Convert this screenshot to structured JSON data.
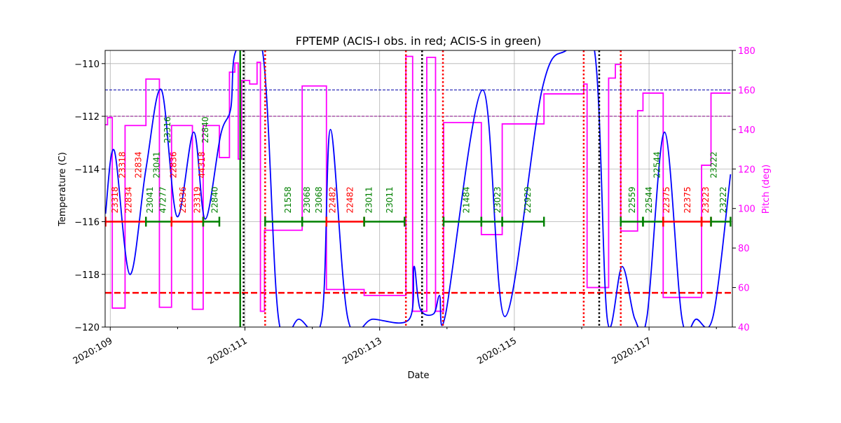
{
  "chart_data": {
    "type": "line",
    "title": "FPTEMP (ACIS-I obs. in red; ACIS-S in green)",
    "xlabel": "Date",
    "ylabel": "Temperature (C)",
    "y2label": "Pitch (deg)",
    "xlim": [
      108.93,
      118.21
    ],
    "ylim": [
      -120,
      -109.5
    ],
    "y2lim": [
      40,
      180
    ],
    "x_ticks": [
      109,
      111,
      113,
      115,
      117
    ],
    "x_tick_labels": [
      "2020:109",
      "2020:111",
      "2020:113",
      "2020:115",
      "2020:117"
    ],
    "x_minor_ticks": [
      110,
      112,
      114,
      116,
      118
    ],
    "y_ticks": [
      -120,
      -118,
      -116,
      -114,
      -112,
      -110
    ],
    "y_tick_labels": [
      "−120",
      "−118",
      "−116",
      "−114",
      "−112",
      "−110"
    ],
    "y2_ticks": [
      40,
      60,
      80,
      100,
      120,
      140,
      160,
      180
    ],
    "y2_tick_labels": [
      "40",
      "60",
      "80",
      "100",
      "120",
      "140",
      "160",
      "180"
    ],
    "grid": true,
    "colors": {
      "temperature": "#0000ff",
      "pitch": "#ff00ff",
      "acis_i": "#ff0000",
      "acis_s": "#008000",
      "limit_planning": "#0000aa",
      "limit_purple": "#800080",
      "limit_red": "#ff0000",
      "title_right_axis": "#ff00ff"
    },
    "temperature": {
      "x": [
        108.93,
        109.06,
        109.29,
        109.53,
        109.76,
        109.99,
        110.24,
        110.41,
        110.64,
        110.79,
        110.87,
        111.26,
        111.5,
        111.8,
        112.14,
        112.27,
        112.53,
        112.9,
        113.44,
        113.51,
        113.6,
        113.8,
        113.89,
        113.98,
        114.53,
        114.86,
        115.41,
        115.77,
        116.19,
        116.38,
        116.6,
        116.79,
        116.97,
        117.23,
        117.49,
        117.7,
        117.95,
        118.21
      ],
      "y": [
        -115.7,
        -113.3,
        -118.0,
        -114.0,
        -111.0,
        -115.8,
        -112.6,
        -115.9,
        -112.7,
        -111.7,
        -109.5,
        -109.5,
        -119.7,
        -119.7,
        -119.7,
        -112.5,
        -119.7,
        -119.7,
        -119.7,
        -117.7,
        -119.3,
        -119.5,
        -118.8,
        -119.5,
        -111.0,
        -119.6,
        -111.0,
        -109.5,
        -109.5,
        -119.7,
        -117.7,
        -119.7,
        -119.6,
        -112.6,
        -119.7,
        -119.7,
        -119.6,
        -114.2
      ]
    },
    "pitch_steps": [
      [
        108.93,
        142.4
      ],
      [
        108.96,
        146
      ],
      [
        109.03,
        49.6
      ],
      [
        109.22,
        142
      ],
      [
        109.53,
        165.5
      ],
      [
        109.73,
        50
      ],
      [
        109.91,
        142
      ],
      [
        110.22,
        49
      ],
      [
        110.38,
        142
      ],
      [
        110.62,
        125.8
      ],
      [
        110.77,
        169
      ],
      [
        110.85,
        173.6
      ],
      [
        110.9,
        125
      ],
      [
        110.95,
        164.8
      ],
      [
        111.07,
        163
      ],
      [
        111.18,
        174
      ],
      [
        111.23,
        48
      ],
      [
        111.29,
        89
      ],
      [
        111.85,
        162
      ],
      [
        112.21,
        59
      ],
      [
        112.77,
        56
      ],
      [
        113.39,
        177
      ],
      [
        113.49,
        48
      ],
      [
        113.7,
        176.5
      ],
      [
        113.83,
        48
      ],
      [
        113.95,
        143.5
      ],
      [
        114.51,
        86.8
      ],
      [
        114.82,
        142.8
      ],
      [
        115.44,
        158
      ],
      [
        116.03,
        163
      ],
      [
        116.08,
        60
      ],
      [
        116.4,
        166
      ],
      [
        116.5,
        172.9
      ],
      [
        116.58,
        88.6
      ],
      [
        116.83,
        149.5
      ],
      [
        116.91,
        158.4
      ],
      [
        117.21,
        55
      ],
      [
        117.78,
        121.9
      ],
      [
        117.92,
        158.4
      ],
      [
        118.21,
        158.4
      ]
    ],
    "hlines": [
      {
        "y": -111,
        "color": "#0000aa",
        "style": "dashed"
      },
      {
        "y": -112,
        "color": "#800080",
        "style": "dashed"
      },
      {
        "y": -118.7,
        "color": "#ff0000",
        "style": "dashed-thick"
      }
    ],
    "vlines": [
      {
        "x": 110.93,
        "color": "#008000",
        "style": "solid"
      },
      {
        "x": 110.98,
        "color": "#000000",
        "style": "dotted"
      },
      {
        "x": 113.63,
        "color": "#000000",
        "style": "dotted"
      },
      {
        "x": 116.26,
        "color": "#000000",
        "style": "dotted"
      },
      {
        "x": 111.3,
        "color": "#ff0000",
        "style": "dotted"
      },
      {
        "x": 113.39,
        "color": "#ff0000",
        "style": "dotted"
      },
      {
        "x": 113.94,
        "color": "#ff0000",
        "style": "dotted"
      },
      {
        "x": 116.03,
        "color": "#ff0000",
        "style": "dotted"
      },
      {
        "x": 116.58,
        "color": "#ff0000",
        "style": "dotted"
      }
    ],
    "obs_segments": [
      {
        "x0": 108.93,
        "x1": 109.53,
        "instrument": "ACIS-I"
      },
      {
        "x0": 109.53,
        "x1": 109.91,
        "instrument": "ACIS-S"
      },
      {
        "x0": 109.91,
        "x1": 110.38,
        "instrument": "ACIS-I"
      },
      {
        "x0": 110.38,
        "x1": 110.62,
        "instrument": "ACIS-S"
      },
      {
        "x0": 111.3,
        "x1": 111.85,
        "instrument": "ACIS-S"
      },
      {
        "x0": 111.85,
        "x1": 112.21,
        "instrument": "ACIS-S"
      },
      {
        "x0": 112.21,
        "x1": 112.77,
        "instrument": "ACIS-I"
      },
      {
        "x0": 112.77,
        "x1": 113.37,
        "instrument": "ACIS-S"
      },
      {
        "x0": 113.95,
        "x1": 114.51,
        "instrument": "ACIS-S"
      },
      {
        "x0": 114.51,
        "x1": 114.82,
        "instrument": "ACIS-S"
      },
      {
        "x0": 114.82,
        "x1": 115.44,
        "instrument": "ACIS-S"
      },
      {
        "x0": 116.58,
        "x1": 116.91,
        "instrument": "ACIS-S"
      },
      {
        "x0": 116.91,
        "x1": 117.21,
        "instrument": "ACIS-S"
      },
      {
        "x0": 117.21,
        "x1": 117.78,
        "instrument": "ACIS-I"
      },
      {
        "x0": 117.78,
        "x1": 117.92,
        "instrument": "ACIS-I"
      },
      {
        "x0": 117.92,
        "x1": 118.21,
        "instrument": "ACIS-S"
      }
    ],
    "obs_level": -116,
    "obs_labels": [
      {
        "x": 109.06,
        "text": "23318",
        "instrument": "ACIS-I"
      },
      {
        "x": 109.17,
        "text": "23318",
        "instrument": "ACIS-I"
      },
      {
        "x": 109.26,
        "text": "22834",
        "instrument": "ACIS-I"
      },
      {
        "x": 109.41,
        "text": "22834",
        "instrument": "ACIS-I"
      },
      {
        "x": 109.58,
        "text": "23041",
        "instrument": "ACIS-S"
      },
      {
        "x": 109.68,
        "text": "23041",
        "instrument": "ACIS-S"
      },
      {
        "x": 109.77,
        "text": "47277",
        "instrument": "ACIS-S"
      },
      {
        "x": 109.84,
        "text": "23316",
        "instrument": "ACIS-S"
      },
      {
        "x": 109.93,
        "text": "22836",
        "instrument": "ACIS-I"
      },
      {
        "x": 110.07,
        "text": "22836",
        "instrument": "ACIS-I"
      },
      {
        "x": 110.28,
        "text": "23319",
        "instrument": "ACIS-I"
      },
      {
        "x": 110.35,
        "text": "44318",
        "instrument": "ACIS-I"
      },
      {
        "x": 110.4,
        "text": "22840",
        "instrument": "ACIS-S"
      },
      {
        "x": 110.54,
        "text": "22840",
        "instrument": "ACIS-S"
      },
      {
        "x": 111.63,
        "text": "21558",
        "instrument": "ACIS-S"
      },
      {
        "x": 111.91,
        "text": "23068",
        "instrument": "ACIS-S"
      },
      {
        "x": 112.09,
        "text": "23068",
        "instrument": "ACIS-S"
      },
      {
        "x": 112.29,
        "text": "22482",
        "instrument": "ACIS-I"
      },
      {
        "x": 112.55,
        "text": "22482",
        "instrument": "ACIS-I"
      },
      {
        "x": 112.83,
        "text": "23011",
        "instrument": "ACIS-S"
      },
      {
        "x": 113.14,
        "text": "23011",
        "instrument": "ACIS-S"
      },
      {
        "x": 114.28,
        "text": "21484",
        "instrument": "ACIS-S"
      },
      {
        "x": 114.74,
        "text": "23023",
        "instrument": "ACIS-S"
      },
      {
        "x": 115.19,
        "text": "22929",
        "instrument": "ACIS-S"
      },
      {
        "x": 116.74,
        "text": "22559",
        "instrument": "ACIS-S"
      },
      {
        "x": 116.99,
        "text": "22544",
        "instrument": "ACIS-S"
      },
      {
        "x": 117.11,
        "text": "22544",
        "instrument": "ACIS-S"
      },
      {
        "x": 117.25,
        "text": "22375",
        "instrument": "ACIS-I"
      },
      {
        "x": 117.56,
        "text": "22375",
        "instrument": "ACIS-I"
      },
      {
        "x": 117.83,
        "text": "23223",
        "instrument": "ACIS-I"
      },
      {
        "x": 117.95,
        "text": "23222",
        "instrument": "ACIS-S"
      },
      {
        "x": 118.09,
        "text": "23222",
        "instrument": "ACIS-S"
      }
    ]
  }
}
